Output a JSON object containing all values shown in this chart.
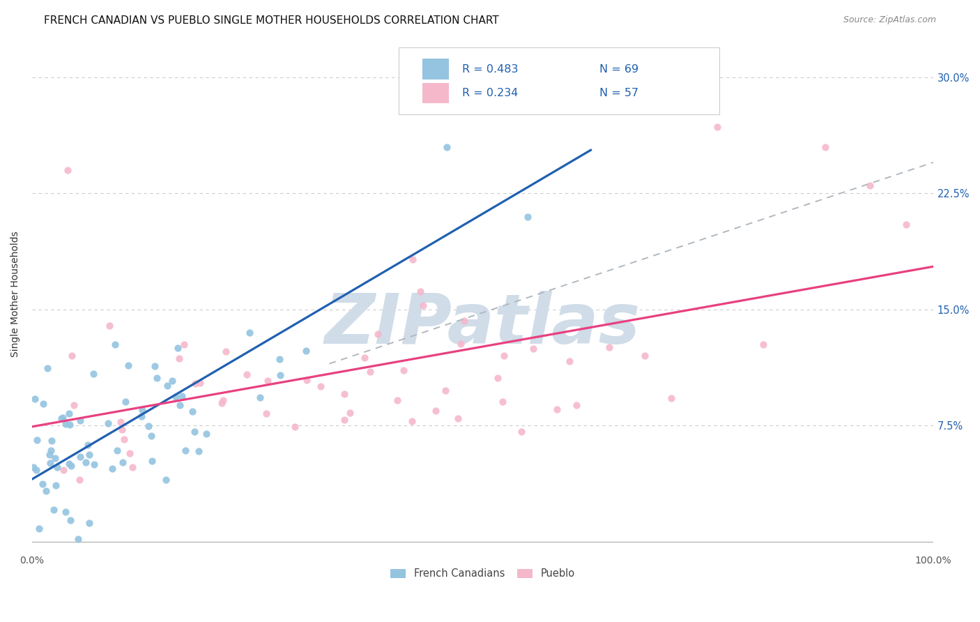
{
  "title": "FRENCH CANADIAN VS PUEBLO SINGLE MOTHER HOUSEHOLDS CORRELATION CHART",
  "source": "Source: ZipAtlas.com",
  "ylabel": "Single Mother Households",
  "ytick_labels": [
    "7.5%",
    "15.0%",
    "22.5%",
    "30.0%"
  ],
  "ytick_values": [
    0.075,
    0.15,
    0.225,
    0.3
  ],
  "xlim": [
    0.0,
    1.0
  ],
  "ylim": [
    -0.005,
    0.325
  ],
  "blue_scatter_color": "#94c4e0",
  "pink_scatter_color": "#f5b8cb",
  "blue_line_color": "#2060b0",
  "pink_line_color": "#e84080",
  "dashed_line_color": "#b0b8c0",
  "text_color_blue": "#2060b0",
  "legend_label_blue": "French Canadians",
  "legend_label_pink": "Pueblo",
  "watermark_text": "ZIPatlas",
  "watermark_color": "#d0dce8",
  "title_fontsize": 11,
  "source_fontsize": 9,
  "blue_R": "0.483",
  "blue_N": "69",
  "pink_R": "0.234",
  "pink_N": "57"
}
